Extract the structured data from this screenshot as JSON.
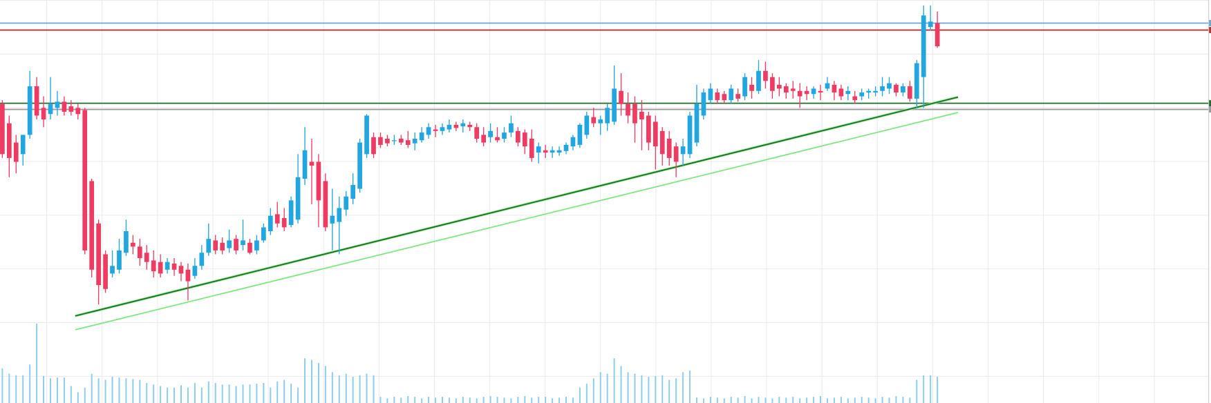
{
  "chart_data": {
    "type": "candlestick",
    "up_color": "#22a6df",
    "down_color": "#ef3b62",
    "volume_color": "#8fcdec",
    "grid": true,
    "xlim": [
      -0.34,
      175.8
    ],
    "ylim": [
      0,
      523
    ],
    "volume_ylim": [
      0,
      523
    ],
    "open": [
      388,
      363,
      338,
      323,
      348,
      411,
      383,
      375,
      383,
      391,
      385,
      383,
      380,
      288,
      233,
      193,
      168,
      173,
      195,
      208,
      203,
      195,
      185,
      183,
      173,
      181,
      178,
      173,
      165,
      178,
      195,
      211,
      208,
      201,
      213,
      205,
      208,
      198,
      211,
      223,
      245,
      240,
      231,
      238,
      291,
      313,
      313,
      288,
      233,
      235,
      251,
      265,
      278,
      323,
      345,
      345,
      343,
      340,
      343,
      341,
      337,
      341,
      348,
      355,
      353,
      355,
      361,
      359,
      361,
      358,
      348,
      345,
      345,
      343,
      351,
      353,
      351,
      343,
      325,
      328,
      325,
      325,
      327,
      333,
      335,
      348,
      371,
      363,
      363,
      365,
      405,
      388,
      388,
      378,
      373,
      365,
      353,
      343,
      333,
      323,
      323,
      338,
      373,
      393,
      403,
      401,
      393,
      401,
      398,
      413,
      405,
      431,
      423,
      413,
      411,
      408,
      405,
      405,
      401,
      405,
      408,
      413,
      408,
      401,
      398,
      398,
      403,
      403,
      405,
      408,
      413,
      403,
      411,
      395,
      423,
      488,
      493
    ],
    "high": [
      393,
      373,
      348,
      348,
      431,
      423,
      398,
      423,
      405,
      398,
      393,
      388,
      383,
      291,
      238,
      198,
      198,
      213,
      238,
      218,
      213,
      205,
      198,
      193,
      188,
      188,
      183,
      181,
      188,
      205,
      233,
      218,
      215,
      225,
      218,
      238,
      213,
      218,
      233,
      253,
      261,
      253,
      268,
      323,
      358,
      343,
      323,
      298,
      278,
      268,
      275,
      298,
      343,
      375,
      351,
      351,
      348,
      348,
      348,
      353,
      351,
      358,
      363,
      361,
      363,
      368,
      365,
      368,
      365,
      363,
      358,
      363,
      358,
      358,
      373,
      358,
      355,
      355,
      338,
      335,
      333,
      333,
      338,
      348,
      363,
      378,
      383,
      373,
      388,
      438,
      428,
      403,
      398,
      393,
      378,
      373,
      358,
      353,
      338,
      343,
      378,
      413,
      408,
      415,
      408,
      405,
      413,
      408,
      428,
      423,
      445,
      443,
      428,
      423,
      415,
      418,
      415,
      411,
      411,
      413,
      423,
      418,
      413,
      411,
      405,
      408,
      408,
      411,
      423,
      423,
      415,
      415,
      418,
      445,
      516,
      516,
      508
    ],
    "low": [
      318,
      293,
      298,
      308,
      343,
      368,
      358,
      368,
      373,
      373,
      373,
      368,
      193,
      163,
      128,
      143,
      163,
      168,
      191,
      193,
      178,
      173,
      163,
      163,
      168,
      165,
      158,
      133,
      161,
      173,
      191,
      193,
      193,
      195,
      193,
      198,
      193,
      193,
      208,
      218,
      228,
      223,
      228,
      233,
      283,
      258,
      228,
      223,
      198,
      193,
      243,
      258,
      273,
      318,
      318,
      331,
      333,
      335,
      335,
      331,
      328,
      338,
      343,
      345,
      348,
      351,
      353,
      351,
      353,
      338,
      333,
      338,
      338,
      338,
      345,
      333,
      323,
      313,
      311,
      318,
      318,
      321,
      323,
      328,
      331,
      343,
      358,
      348,
      353,
      361,
      373,
      363,
      338,
      328,
      328,
      303,
      308,
      308,
      293,
      308,
      318,
      333,
      368,
      388,
      388,
      388,
      388,
      391,
      393,
      395,
      401,
      408,
      395,
      398,
      395,
      395,
      383,
      393,
      395,
      393,
      405,
      393,
      393,
      393,
      388,
      393,
      395,
      398,
      398,
      401,
      398,
      398,
      391,
      383,
      383,
      483,
      461
    ],
    "close": [
      323,
      318,
      313,
      348,
      411,
      373,
      368,
      388,
      391,
      378,
      378,
      375,
      198,
      173,
      153,
      148,
      178,
      198,
      223,
      203,
      188,
      183,
      171,
      168,
      183,
      173,
      168,
      158,
      178,
      195,
      213,
      198,
      198,
      211,
      198,
      211,
      195,
      211,
      228,
      243,
      233,
      228,
      263,
      293,
      328,
      308,
      263,
      228,
      243,
      253,
      268,
      283,
      338,
      373,
      323,
      335,
      337,
      341,
      338,
      335,
      343,
      351,
      358,
      353,
      358,
      361,
      357,
      363,
      358,
      343,
      338,
      353,
      341,
      351,
      363,
      338,
      333,
      318,
      333,
      325,
      328,
      328,
      335,
      345,
      361,
      373,
      363,
      368,
      383,
      408,
      388,
      373,
      363,
      368,
      338,
      333,
      323,
      318,
      313,
      333,
      373,
      388,
      403,
      408,
      393,
      393,
      408,
      395,
      423,
      405,
      431,
      418,
      405,
      408,
      403,
      405,
      398,
      401,
      408,
      403,
      415,
      403,
      398,
      405,
      393,
      403,
      405,
      405,
      411,
      415,
      403,
      411,
      395,
      441,
      503,
      495,
      463
    ],
    "volume": [
      45,
      38,
      36,
      36,
      50,
      103,
      35,
      32,
      33,
      33,
      22,
      14,
      20,
      38,
      32,
      30,
      34,
      33,
      32,
      31,
      30,
      26,
      24,
      22,
      20,
      20,
      23,
      20,
      26,
      20,
      28,
      26,
      24,
      24,
      22,
      24,
      24,
      25,
      26,
      20,
      28,
      30,
      25,
      20,
      58,
      56,
      52,
      48,
      40,
      36,
      38,
      34,
      36,
      38,
      36,
      8,
      6,
      8,
      7,
      9,
      8,
      6,
      8,
      7,
      8,
      7,
      6,
      8,
      7,
      6,
      8,
      9,
      8,
      7,
      6,
      8,
      9,
      7,
      8,
      8,
      6,
      7,
      8,
      7,
      20,
      25,
      32,
      40,
      38,
      58,
      48,
      40,
      38,
      36,
      34,
      35,
      36,
      30,
      32,
      40,
      42,
      7,
      6,
      8,
      7,
      6,
      8,
      7,
      9,
      6,
      8,
      7,
      6,
      8,
      7,
      8,
      6,
      7,
      8,
      9,
      6,
      7,
      8,
      6,
      7,
      8,
      7,
      6,
      8,
      7,
      9,
      8,
      7,
      30,
      36,
      36,
      34
    ],
    "levels": [
      {
        "value": 493,
        "color": "#6aa6d8"
      },
      {
        "value": 484,
        "color": "#b5332b"
      },
      {
        "value": 389,
        "color": "#1f6b2a"
      },
      {
        "value": 381,
        "color": "#9a9a9a"
      }
    ],
    "trendlines": [
      {
        "x": [
          10.6,
          139.0
        ],
        "y": [
          95,
          377
        ],
        "color": "#7ce87c"
      },
      {
        "x": [
          10.6,
          139.0
        ],
        "y": [
          113,
          397
        ],
        "color": "#1f6b2a"
      }
    ]
  }
}
